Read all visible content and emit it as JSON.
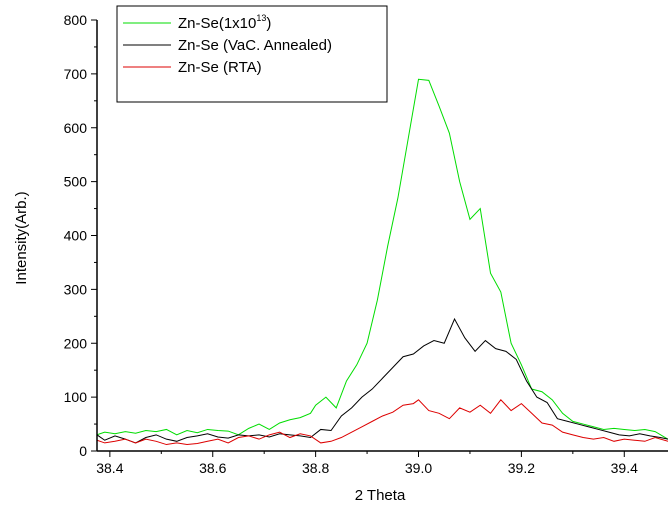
{
  "chart_data": {
    "type": "line",
    "title": "",
    "xlabel": "2 Theta",
    "ylabel": "Intensity(Arb.)",
    "xlim": [
      38.375,
      39.485
    ],
    "ylim": [
      0,
      800
    ],
    "xticks": [
      38.4,
      38.6,
      38.8,
      39.0,
      39.2,
      39.4
    ],
    "xtick_labels": [
      "38.4",
      "38.6",
      "38.8",
      "39.0",
      "39.2",
      "39.4"
    ],
    "yticks": [
      0,
      100,
      200,
      300,
      400,
      500,
      600,
      700,
      800
    ],
    "ytick_labels": [
      "0",
      "100",
      "200",
      "300",
      "400",
      "500",
      "600",
      "700",
      "800"
    ],
    "grid": false,
    "legend_position": "top-left",
    "series": [
      {
        "name": "Zn-Se(1x10",
        "name_sup": "13",
        "name_suffix": ")",
        "color": "#00dd00",
        "x": [
          38.375,
          38.39,
          38.41,
          38.43,
          38.45,
          38.47,
          38.49,
          38.51,
          38.53,
          38.55,
          38.57,
          38.59,
          38.61,
          38.63,
          38.65,
          38.67,
          38.69,
          38.71,
          38.73,
          38.75,
          38.77,
          38.79,
          38.8,
          38.82,
          38.84,
          38.86,
          38.88,
          38.9,
          38.92,
          38.94,
          38.96,
          38.98,
          39.0,
          39.02,
          39.04,
          39.06,
          39.08,
          39.1,
          39.12,
          39.14,
          39.16,
          39.18,
          39.2,
          39.22,
          39.24,
          39.26,
          39.28,
          39.3,
          39.32,
          39.34,
          39.36,
          39.38,
          39.4,
          39.42,
          39.44,
          39.46,
          39.485
        ],
        "y": [
          30,
          35,
          32,
          36,
          33,
          38,
          36,
          40,
          30,
          38,
          34,
          40,
          38,
          37,
          30,
          42,
          50,
          40,
          52,
          58,
          62,
          70,
          85,
          100,
          80,
          130,
          160,
          200,
          280,
          380,
          470,
          580,
          690,
          688,
          640,
          590,
          500,
          430,
          450,
          330,
          295,
          200,
          160,
          115,
          110,
          95,
          70,
          55,
          50,
          45,
          40,
          42,
          40,
          38,
          40,
          36,
          22
        ]
      },
      {
        "name": "Zn-Se (VaC. Annealed)",
        "color": "#000000",
        "x": [
          38.375,
          38.39,
          38.41,
          38.43,
          38.45,
          38.47,
          38.49,
          38.51,
          38.53,
          38.55,
          38.57,
          38.59,
          38.61,
          38.63,
          38.65,
          38.67,
          38.69,
          38.71,
          38.73,
          38.75,
          38.77,
          38.79,
          38.81,
          38.83,
          38.85,
          38.87,
          38.89,
          38.91,
          38.93,
          38.95,
          38.97,
          38.99,
          39.01,
          39.03,
          39.05,
          39.07,
          39.09,
          39.11,
          39.13,
          39.15,
          39.17,
          39.19,
          39.21,
          39.23,
          39.25,
          39.27,
          39.29,
          39.31,
          39.33,
          39.35,
          39.37,
          39.39,
          39.41,
          39.43,
          39.45,
          39.47,
          39.485
        ],
        "y": [
          30,
          20,
          28,
          22,
          15,
          25,
          30,
          22,
          18,
          25,
          28,
          32,
          26,
          24,
          30,
          28,
          30,
          26,
          32,
          30,
          28,
          25,
          40,
          38,
          65,
          80,
          100,
          115,
          135,
          155,
          175,
          180,
          195,
          205,
          200,
          245,
          210,
          185,
          205,
          190,
          185,
          170,
          130,
          100,
          90,
          60,
          55,
          50,
          45,
          40,
          35,
          30,
          28,
          32,
          28,
          25,
          22
        ]
      },
      {
        "name": "Zn-Se (RTA)",
        "color": "#dd0000",
        "x": [
          38.375,
          38.39,
          38.41,
          38.43,
          38.45,
          38.47,
          38.49,
          38.51,
          38.53,
          38.55,
          38.57,
          38.59,
          38.61,
          38.63,
          38.65,
          38.67,
          38.69,
          38.71,
          38.73,
          38.75,
          38.77,
          38.79,
          38.81,
          38.83,
          38.85,
          38.87,
          38.89,
          38.91,
          38.93,
          38.95,
          38.97,
          38.99,
          39.0,
          39.02,
          39.04,
          39.06,
          39.08,
          39.1,
          39.12,
          39.14,
          39.16,
          39.18,
          39.2,
          39.22,
          39.24,
          39.26,
          39.28,
          39.3,
          39.32,
          39.34,
          39.36,
          39.38,
          39.4,
          39.42,
          39.44,
          39.46,
          39.485
        ],
        "y": [
          20,
          15,
          18,
          22,
          15,
          22,
          18,
          12,
          15,
          12,
          14,
          18,
          22,
          15,
          25,
          28,
          22,
          30,
          35,
          25,
          32,
          28,
          15,
          18,
          25,
          35,
          45,
          55,
          65,
          72,
          85,
          88,
          95,
          75,
          70,
          60,
          80,
          72,
          85,
          70,
          95,
          75,
          88,
          70,
          52,
          48,
          35,
          30,
          25,
          22,
          25,
          18,
          22,
          20,
          18,
          25,
          18
        ]
      }
    ]
  }
}
